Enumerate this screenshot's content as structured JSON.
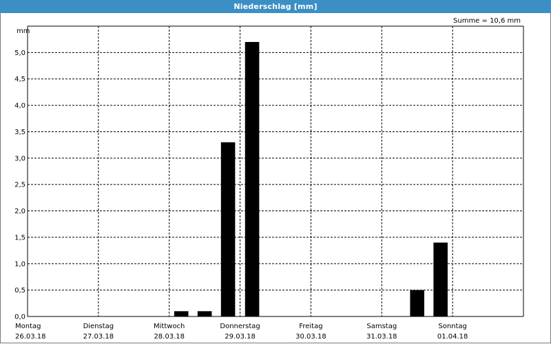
{
  "chart_data": {
    "type": "bar",
    "title": "Niederschlag [mm]",
    "summary": "Summe = 10,6 mm",
    "ylabel": "mm",
    "ylim": [
      0,
      5.5
    ],
    "yticks": [
      "0,0",
      "0,5",
      "1,0",
      "1,5",
      "2,0",
      "2,5",
      "3,0",
      "3,5",
      "4,0",
      "4,5",
      "5,0"
    ],
    "xlim": [
      0,
      7
    ],
    "days": [
      {
        "name": "Montag",
        "date": "26.03.18"
      },
      {
        "name": "Dienstag",
        "date": "27.03.18"
      },
      {
        "name": "Mittwoch",
        "date": "28.03.18"
      },
      {
        "name": "Donnerstag",
        "date": "29.03.18"
      },
      {
        "name": "Freitag",
        "date": "30.03.18"
      },
      {
        "name": "Samstag",
        "date": "31.03.18"
      },
      {
        "name": "Sonntag",
        "date": "01.04.18"
      }
    ],
    "bars": [
      {
        "x": 2.17,
        "value": 0.1
      },
      {
        "x": 2.5,
        "value": 0.1
      },
      {
        "x": 2.83,
        "value": 3.3
      },
      {
        "x": 3.17,
        "value": 5.2
      },
      {
        "x": 5.5,
        "value": 0.5
      },
      {
        "x": 5.83,
        "value": 1.4
      }
    ],
    "bar_width_days": 0.2,
    "grid": true,
    "bar_color": "#000000",
    "grid_color": "#000000"
  }
}
